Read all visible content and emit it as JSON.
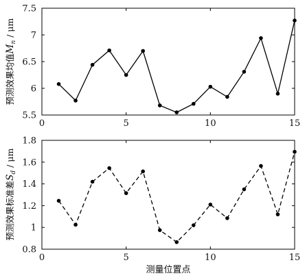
{
  "chart_data": [
    {
      "type": "line",
      "title": "",
      "ylabel": "预测效果均值M_n / μm",
      "xlabel": "",
      "xlim": [
        0,
        15
      ],
      "ylim": [
        5.5,
        7.5
      ],
      "xticks": [
        "0",
        "5",
        "10",
        "15"
      ],
      "yticks": [
        "5.5",
        "6",
        "6.5",
        "7",
        "7.5"
      ],
      "line_style": "solid",
      "grid": false,
      "series": [
        {
          "x": [
            1,
            2,
            3,
            4,
            5,
            6,
            7,
            8,
            9,
            10,
            11,
            12,
            13,
            14,
            15
          ],
          "values": [
            6.08,
            5.77,
            6.44,
            6.71,
            6.25,
            6.7,
            5.68,
            5.55,
            5.71,
            6.03,
            5.84,
            6.31,
            6.94,
            5.9,
            7.27
          ]
        }
      ]
    },
    {
      "type": "line",
      "title": "",
      "ylabel": "预测效果标准差S_d / μm",
      "xlabel": "测量位置点",
      "xlim": [
        0,
        15
      ],
      "ylim": [
        0.8,
        1.8
      ],
      "xticks": [
        "0",
        "5",
        "10",
        "15"
      ],
      "yticks": [
        "0.8",
        "1",
        "1.2",
        "1.4",
        "1.6",
        "1.8"
      ],
      "line_style": "dashed",
      "grid": false,
      "series": [
        {
          "x": [
            1,
            2,
            3,
            4,
            5,
            6,
            7,
            8,
            9,
            10,
            11,
            12,
            13,
            14,
            15
          ],
          "values": [
            1.245,
            1.025,
            1.42,
            1.545,
            1.315,
            1.515,
            0.975,
            0.865,
            1.02,
            1.21,
            1.085,
            1.35,
            1.565,
            1.12,
            1.695
          ]
        }
      ]
    }
  ]
}
